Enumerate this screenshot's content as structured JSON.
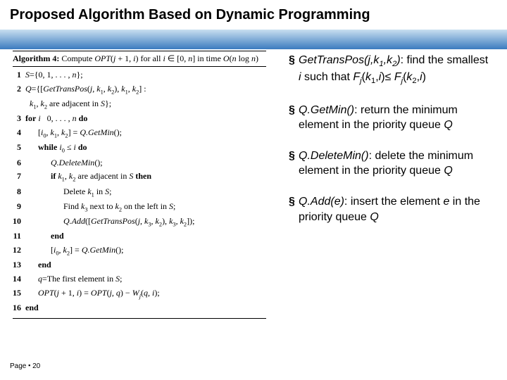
{
  "title": "Proposed Algorithm Based on Dynamic Programming",
  "footer_label": "Page",
  "footer_num": "20",
  "algo": {
    "header_html": "<span class='bd'>Algorithm 4:</span> Compute <span class='it'>OPT</span>(<span class='it'>j</span> + 1, <span class='it'>i</span>) for all <span class='it'>i</span> ∈ [0, <span class='it'>n</span>] in time <span class='it'>O</span>(<span class='it'>n</span> log <span class='it'>n</span>)",
    "lines": [
      {
        "n": "1",
        "indent": 0,
        "html": "<span class='it'>S</span>={0, 1, . . . , <span class='it'>n</span>};"
      },
      {
        "n": "2",
        "indent": 0,
        "html": "<span class='it'>Q</span>={[<span class='it'>GetTransPos</span>(<span class='it'>j</span>, <span class='it'>k</span><sub>1</sub>, <span class='it'>k</span><sub>2</sub>), <span class='it'>k</span><sub>1</sub>, <span class='it'>k</span><sub>2</sub>] :"
      },
      {
        "n": "",
        "indent": 0,
        "html": "&nbsp;&nbsp;<span class='it'>k</span><sub>1</sub>, <span class='it'>k</span><sub>2</sub> are adjacent in <span class='it'>S</span>};"
      },
      {
        "n": "3",
        "indent": 0,
        "html": "<span class='bd'>for</span> <span class='it'>i</span> &nbsp; 0, . . . , <span class='it'>n</span> <span class='bd'>do</span>"
      },
      {
        "n": "4",
        "indent": 1,
        "html": "[<span class='it'>i</span><sub>0</sub>, <span class='it'>k</span><sub>1</sub>, <span class='it'>k</span><sub>2</sub>] = <span class='it'>Q.GetMin</span>();"
      },
      {
        "n": "5",
        "indent": 1,
        "html": "<span class='bd'>while</span> <span class='it'>i</span><sub>0</sub> ≤ <span class='it'>i</span> <span class='bd'>do</span>"
      },
      {
        "n": "6",
        "indent": 2,
        "html": "<span class='it'>Q.DeleteMin</span>();"
      },
      {
        "n": "7",
        "indent": 2,
        "html": "<span class='bd'>if</span> <span class='it'>k</span><sub>1</sub>, <span class='it'>k</span><sub>2</sub> are adjacent in <span class='it'>S</span> <span class='bd'>then</span>"
      },
      {
        "n": "8",
        "indent": 3,
        "html": "Delete <span class='it'>k</span><sub>1</sub> in <span class='it'>S</span>;"
      },
      {
        "n": "9",
        "indent": 3,
        "html": "Find <span class='it'>k</span><sub>3</sub> next to <span class='it'>k</span><sub>2</sub> on the left in <span class='it'>S</span>;"
      },
      {
        "n": "10",
        "indent": 3,
        "html": "<span class='it'>Q.Add</span>([<span class='it'>GetTransPos</span>(<span class='it'>j</span>, <span class='it'>k</span><sub>3</sub>, <span class='it'>k</span><sub>2</sub>), <span class='it'>k</span><sub>3</sub>, <span class='it'>k</span><sub>2</sub>]);"
      },
      {
        "n": "11",
        "indent": 2,
        "html": "<span class='bd'>end</span>"
      },
      {
        "n": "12",
        "indent": 2,
        "html": "[<span class='it'>i</span><sub>0</sub>, <span class='it'>k</span><sub>2</sub>] = <span class='it'>Q.GetMin</span>();"
      },
      {
        "n": "13",
        "indent": 1,
        "html": "<span class='bd'>end</span>"
      },
      {
        "n": "14",
        "indent": 1,
        "html": "<span class='it'>q</span>=The first element in <span class='it'>S</span>;"
      },
      {
        "n": "15",
        "indent": 1,
        "html": "<span class='it'>OPT</span>(<span class='it'>j</span> + 1, <span class='it'>i</span>) = <span class='it'>OPT</span>(<span class='it'>j</span>, <span class='it'>q</span>) − <span class='it'>W<sub>j</sub></span>(<span class='it'>q</span>, <span class='it'>i</span>);"
      },
      {
        "n": "16",
        "indent": 0,
        "html": "<span class='bd'>end</span>"
      }
    ]
  },
  "bullets": [
    {
      "html": "<span class='it'>GetTransPos(j,k<sub>1</sub>,k<sub>2</sub>)</span>: find the smallest <span class='it'>i</span> such that <span class='it'>F<sub>j</sub></span>(<span class='it'>k</span><sub>1</sub>,<span class='it'>i</span>)≤ <span class='it'>F<sub>j</sub></span>(<span class='it'>k</span><sub>2</sub>,<span class='it'>i</span>)"
    },
    {
      "html": "<span class='it'>Q.GetMin()</span>: return the minimum element in the priority queue <span class='it'>Q</span>"
    },
    {
      "html": "<span class='it'>Q.DeleteMin()</span>: delete the minimum element in the priority queue <span class='it'>Q</span>"
    },
    {
      "html": "<span class='it'>Q.Add(e)</span>: insert the element <span class='it'>e</span> in the priority queue <span class='it'>Q</span>"
    }
  ]
}
